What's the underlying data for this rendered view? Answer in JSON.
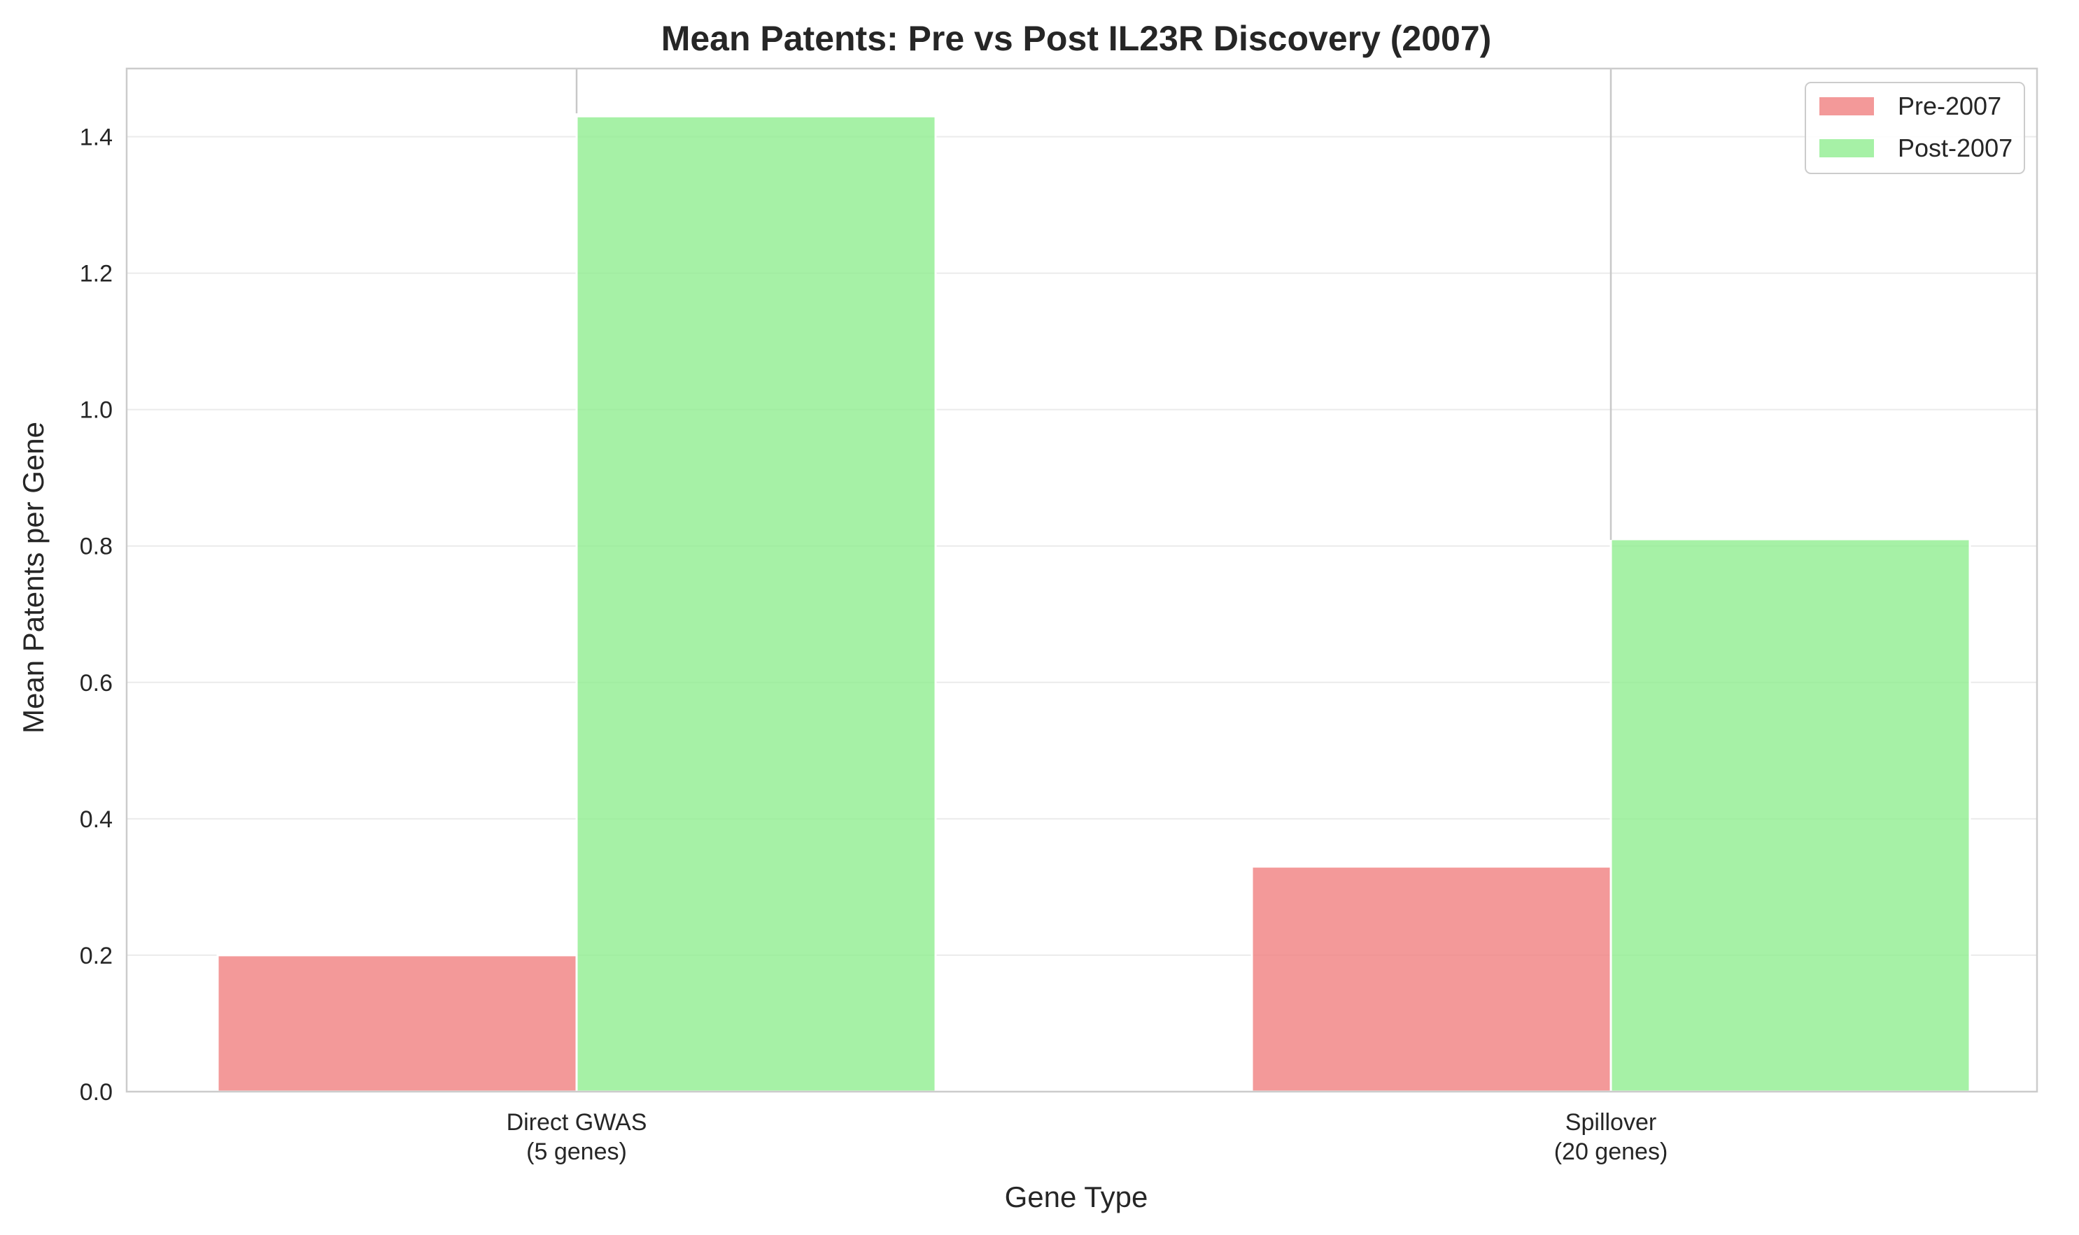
{
  "chart_data": {
    "type": "bar",
    "title": "Mean Patents: Pre vs Post IL23R Discovery (2007)",
    "xlabel": "Gene Type",
    "ylabel": "Mean Patents per Gene",
    "categories": [
      [
        "Direct GWAS",
        "(5 genes)"
      ],
      [
        "Spillover",
        "(20 genes)"
      ]
    ],
    "series": [
      {
        "name": "Pre-2007",
        "values": [
          0.2,
          0.33
        ],
        "color": "#f08080"
      },
      {
        "name": "Post-2007",
        "values": [
          1.43,
          0.81
        ],
        "color": "#90ee90"
      }
    ],
    "ylim": [
      0,
      1.5
    ],
    "yticks": [
      "0.0",
      "0.2",
      "0.4",
      "0.6",
      "0.8",
      "1.0",
      "1.2",
      "1.4"
    ],
    "grid": true,
    "legend_position": "top-right"
  }
}
